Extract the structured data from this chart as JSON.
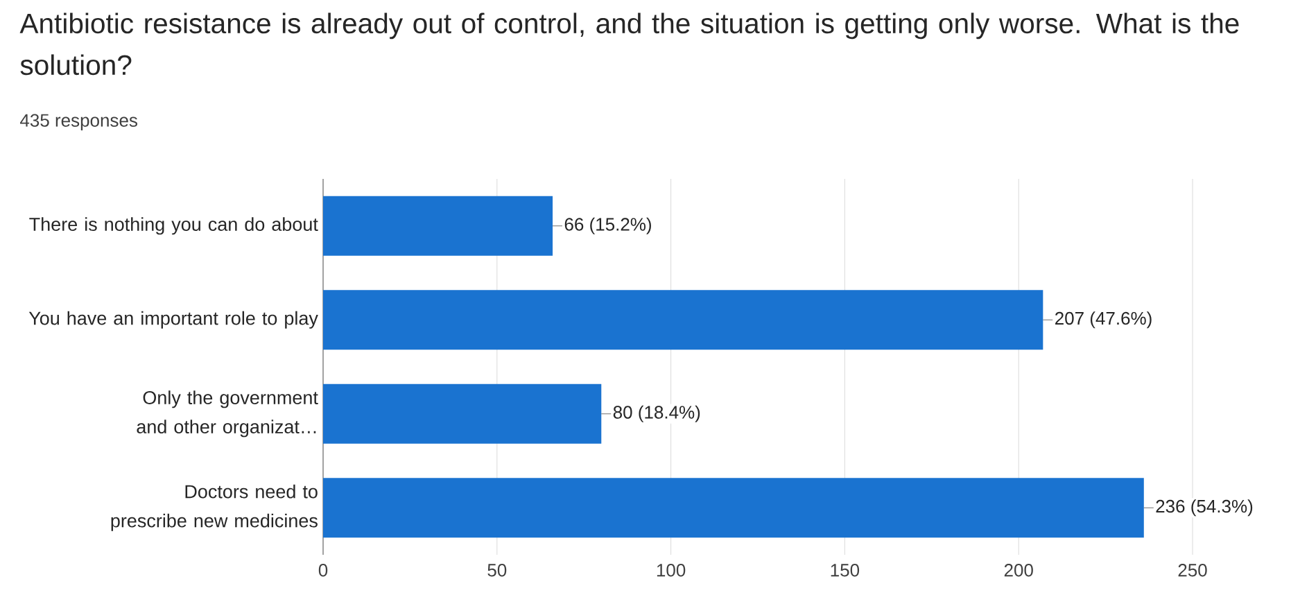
{
  "chart_data": {
    "type": "bar",
    "orientation": "horizontal",
    "title": "Antibiotic resistance is already out of control, and the situation is getting only worse. What is the solution?",
    "subtitle": "435 responses",
    "categories": [
      "There is nothing you can do about",
      "You have an important role to play",
      "Only the government and other organizat…",
      "Doctors need to prescribe new medicines"
    ],
    "values": [
      66,
      207,
      80,
      236
    ],
    "value_labels": [
      "66 (15.2%)",
      "207 (47.6%)",
      "80 (18.4%)",
      "236 (54.3%)"
    ],
    "color": "#1a73d0",
    "xlim": [
      0,
      250
    ],
    "xticks": [
      0,
      50,
      100,
      150,
      200,
      250
    ],
    "grid": "x"
  }
}
